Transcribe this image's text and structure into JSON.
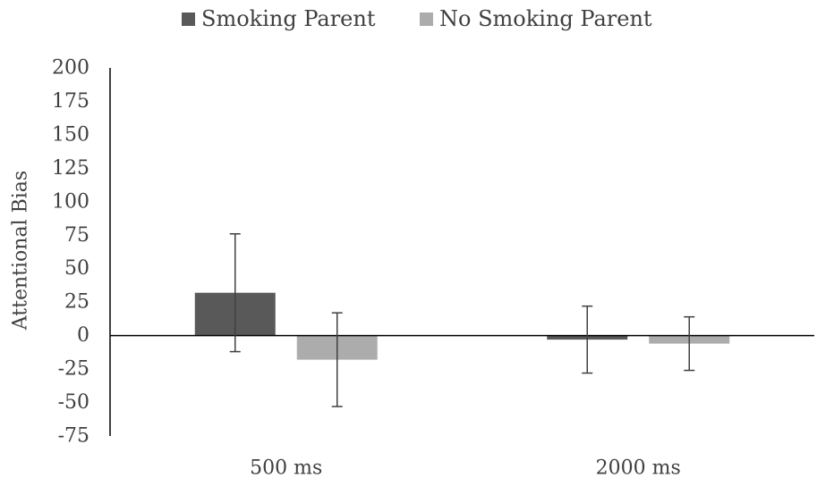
{
  "chart_data": {
    "type": "bar",
    "title": "",
    "xlabel": "",
    "ylabel": "Attentional Bias",
    "ylim": [
      -75,
      200
    ],
    "yticks": [
      200,
      175,
      150,
      125,
      100,
      75,
      50,
      25,
      0,
      -25,
      -50,
      -75
    ],
    "categories": [
      "500 ms",
      "2000 ms"
    ],
    "series": [
      {
        "name": "Smoking Parent",
        "color": "#595959",
        "values": [
          32,
          -3
        ],
        "error_low": [
          -12,
          -28
        ],
        "error_high": [
          76,
          22
        ]
      },
      {
        "name": "No Smoking Parent",
        "color": "#acacac",
        "values": [
          -18,
          -6
        ],
        "error_low": [
          -53,
          -26
        ],
        "error_high": [
          17,
          14
        ]
      }
    ],
    "grid": false,
    "legend_position": "top"
  }
}
